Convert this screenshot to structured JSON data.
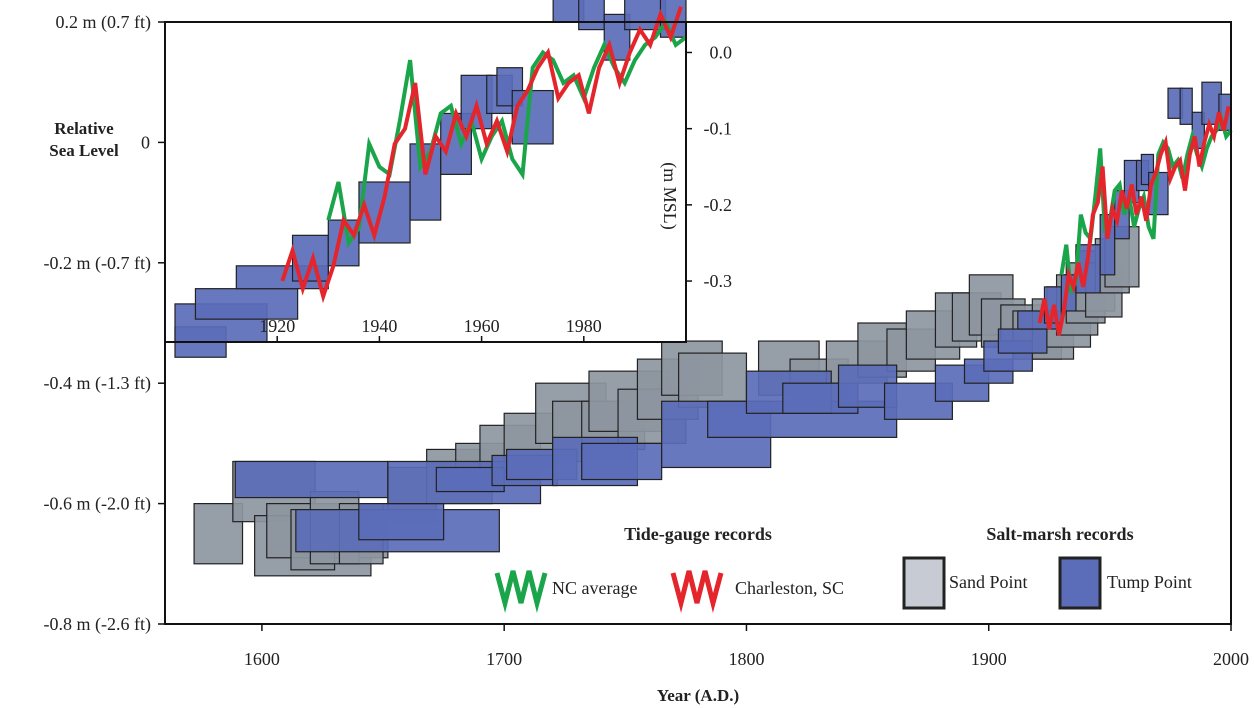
{
  "chart_data": {
    "type": "box",
    "ylabel": "Relative Sea Level",
    "xlabel": "Year (A.D.)",
    "xlim": [
      1560,
      2000
    ],
    "ylim": [
      -0.8,
      0.2
    ],
    "x_ticks": [
      "1600",
      "1700",
      "1800",
      "1900",
      "2000"
    ],
    "x_tick_values": [
      1600,
      1700,
      1800,
      1900,
      2000
    ],
    "y_ticks": [
      "0.2 m (0.7 ft)",
      "0",
      "-0.2 m (-0.7 ft)",
      "-0.4 m (-1.3 ft)",
      "-0.6 m (-2.0 ft)",
      "-0.8 m (-2.6 ft)"
    ],
    "y_tick_values": [
      0.2,
      0,
      -0.2,
      -0.4,
      -0.6,
      -0.8
    ],
    "legend": {
      "tide_title": "Tide-gauge records",
      "marsh_title": "Salt-marsh records",
      "nc_label": "NC average",
      "charleston_label": "Charleston, SC",
      "sand_label": "Sand Point",
      "tump_label": "Tump Point"
    },
    "colors": {
      "nc": "#1aa54a",
      "charleston": "#e4252c",
      "sand": "#8d96a0",
      "tump": "#5b6cb8",
      "box_edge": "#222222"
    },
    "sand_point_boxes": [
      [
        1572,
        1592,
        -0.6,
        -0.7
      ],
      [
        1588,
        1622,
        -0.53,
        -0.63
      ],
      [
        1597,
        1645,
        -0.62,
        -0.72
      ],
      [
        1602,
        1652,
        -0.6,
        -0.69
      ],
      [
        1612,
        1630,
        -0.61,
        -0.71
      ],
      [
        1620,
        1640,
        -0.58,
        -0.7
      ],
      [
        1632,
        1650,
        -0.6,
        -0.7
      ],
      [
        1652,
        1672,
        -0.54,
        -0.63
      ],
      [
        1668,
        1695,
        -0.51,
        -0.6
      ],
      [
        1680,
        1700,
        -0.5,
        -0.58
      ],
      [
        1690,
        1715,
        -0.47,
        -0.56
      ],
      [
        1700,
        1722,
        -0.45,
        -0.54
      ],
      [
        1713,
        1742,
        -0.4,
        -0.5
      ],
      [
        1720,
        1752,
        -0.43,
        -0.53
      ],
      [
        1732,
        1758,
        -0.43,
        -0.51
      ],
      [
        1735,
        1768,
        -0.38,
        -0.48
      ],
      [
        1747,
        1775,
        -0.41,
        -0.5
      ],
      [
        1755,
        1780,
        -0.36,
        -0.46
      ],
      [
        1765,
        1790,
        -0.33,
        -0.42
      ],
      [
        1772,
        1800,
        -0.35,
        -0.44
      ],
      [
        1805,
        1830,
        -0.33,
        -0.42
      ],
      [
        1818,
        1842,
        -0.36,
        -0.44
      ],
      [
        1833,
        1858,
        -0.33,
        -0.4
      ],
      [
        1846,
        1866,
        -0.3,
        -0.39
      ],
      [
        1858,
        1878,
        -0.31,
        -0.38
      ],
      [
        1866,
        1888,
        -0.28,
        -0.36
      ],
      [
        1878,
        1895,
        -0.25,
        -0.34
      ],
      [
        1885,
        1905,
        -0.25,
        -0.33
      ],
      [
        1892,
        1910,
        -0.22,
        -0.32
      ],
      [
        1897,
        1915,
        -0.26,
        -0.34
      ],
      [
        1905,
        1925,
        -0.27,
        -0.35
      ],
      [
        1910,
        1930,
        -0.28,
        -0.36
      ],
      [
        1918,
        1935,
        -0.26,
        -0.36
      ],
      [
        1924,
        1942,
        -0.24,
        -0.34
      ],
      [
        1928,
        1945,
        -0.22,
        -0.32
      ],
      [
        1932,
        1948,
        -0.2,
        -0.3
      ],
      [
        1936,
        1952,
        -0.18,
        -0.28
      ],
      [
        1940,
        1955,
        -0.2,
        -0.29
      ],
      [
        1944,
        1958,
        -0.16,
        -0.25
      ],
      [
        1948,
        1962,
        -0.14,
        -0.24
      ]
    ],
    "tump_point_boxes": [
      [
        1589,
        1652,
        -0.53,
        -0.59
      ],
      [
        1614,
        1698,
        -0.61,
        -0.68
      ],
      [
        1640,
        1675,
        -0.6,
        -0.66
      ],
      [
        1652,
        1715,
        -0.53,
        -0.6
      ],
      [
        1672,
        1700,
        -0.54,
        -0.58
      ],
      [
        1695,
        1722,
        -0.52,
        -0.57
      ],
      [
        1701,
        1730,
        -0.51,
        -0.56
      ],
      [
        1720,
        1755,
        -0.49,
        -0.57
      ],
      [
        1732,
        1765,
        -0.5,
        -0.56
      ],
      [
        1765,
        1810,
        -0.43,
        -0.54
      ],
      [
        1784,
        1862,
        -0.43,
        -0.49
      ],
      [
        1800,
        1835,
        -0.38,
        -0.45
      ],
      [
        1815,
        1846,
        -0.4,
        -0.45
      ],
      [
        1838,
        1862,
        -0.37,
        -0.44
      ],
      [
        1857,
        1885,
        -0.4,
        -0.46
      ],
      [
        1878,
        1900,
        -0.37,
        -0.43
      ],
      [
        1890,
        1910,
        -0.36,
        -0.4
      ],
      [
        1898,
        1918,
        -0.33,
        -0.38
      ],
      [
        1904,
        1924,
        -0.31,
        -0.35
      ],
      [
        1912,
        1930,
        -0.28,
        -0.31
      ],
      [
        1923,
        1930,
        -0.24,
        -0.3
      ],
      [
        1930,
        1936,
        -0.22,
        -0.28
      ],
      [
        1936,
        1946,
        -0.17,
        -0.25
      ],
      [
        1946,
        1952,
        -0.12,
        -0.22
      ],
      [
        1952,
        1958,
        -0.08,
        -0.16
      ],
      [
        1956,
        1962,
        -0.03,
        -0.1
      ],
      [
        1961,
        1966,
        -0.03,
        -0.08
      ],
      [
        1963,
        1968,
        -0.02,
        -0.07
      ],
      [
        1966,
        1974,
        -0.05,
        -0.12
      ],
      [
        1974,
        1980,
        0.09,
        0.04
      ],
      [
        1979,
        1984,
        0.09,
        0.03
      ],
      [
        1984,
        1989,
        0.05,
        -0.01
      ],
      [
        1988,
        1996,
        0.1,
        0.03
      ],
      [
        1995,
        2000,
        0.08,
        0.02
      ]
    ],
    "nc_average": {
      "x": [
        1930,
        1932,
        1934,
        1936,
        1938,
        1940,
        1942,
        1944,
        1946,
        1948,
        1950,
        1952,
        1954,
        1956,
        1958,
        1960,
        1962,
        1964,
        1966,
        1968,
        1970,
        1972,
        1974,
        1976,
        1978,
        1980,
        1982,
        1984,
        1986,
        1988,
        1990,
        1992,
        1994,
        1996,
        1998,
        2000
      ],
      "y": [
        -0.22,
        -0.17,
        -0.25,
        -0.23,
        -0.12,
        -0.15,
        -0.16,
        -0.09,
        -0.01,
        -0.15,
        -0.13,
        -0.08,
        -0.07,
        -0.12,
        -0.09,
        -0.14,
        -0.11,
        -0.09,
        -0.14,
        -0.16,
        -0.02,
        0.0,
        -0.01,
        -0.04,
        -0.03,
        -0.06,
        -0.02,
        0.01,
        -0.02,
        -0.04,
        -0.01,
        0.01,
        0.02,
        0.04,
        0.01,
        0.02
      ]
    },
    "charleston": {
      "x": [
        1921,
        1923,
        1925,
        1927,
        1929,
        1931,
        1933,
        1935,
        1937,
        1939,
        1941,
        1943,
        1945,
        1947,
        1949,
        1951,
        1953,
        1955,
        1957,
        1959,
        1961,
        1963,
        1965,
        1967,
        1969,
        1971,
        1973,
        1975,
        1977,
        1979,
        1981,
        1983,
        1985,
        1987,
        1989,
        1991,
        1993,
        1995,
        1997,
        1999
      ],
      "y": [
        -0.3,
        -0.26,
        -0.31,
        -0.27,
        -0.32,
        -0.28,
        -0.22,
        -0.24,
        -0.2,
        -0.24,
        -0.19,
        -0.12,
        -0.1,
        -0.04,
        -0.16,
        -0.11,
        -0.13,
        -0.08,
        -0.11,
        -0.07,
        -0.12,
        -0.09,
        -0.13,
        -0.07,
        -0.05,
        -0.02,
        0.0,
        -0.06,
        -0.04,
        -0.03,
        -0.08,
        -0.02,
        0.01,
        -0.04,
        0.0,
        0.03,
        0.01,
        0.05,
        0.02,
        0.06
      ]
    },
    "inset": {
      "xlim": [
        1900,
        2000
      ],
      "ylim": [
        -0.38,
        0.04
      ],
      "x_ticks": [
        "1920",
        "1940",
        "1960",
        "1980"
      ],
      "x_tick_values": [
        1920,
        1940,
        1960,
        1980
      ],
      "y_ticks": [
        "0.0",
        "-0.1",
        "-0.2",
        "-0.3"
      ],
      "y_tick_values": [
        0.0,
        -0.1,
        -0.2,
        -0.3
      ],
      "ylabel": "(m MSL)"
    }
  }
}
